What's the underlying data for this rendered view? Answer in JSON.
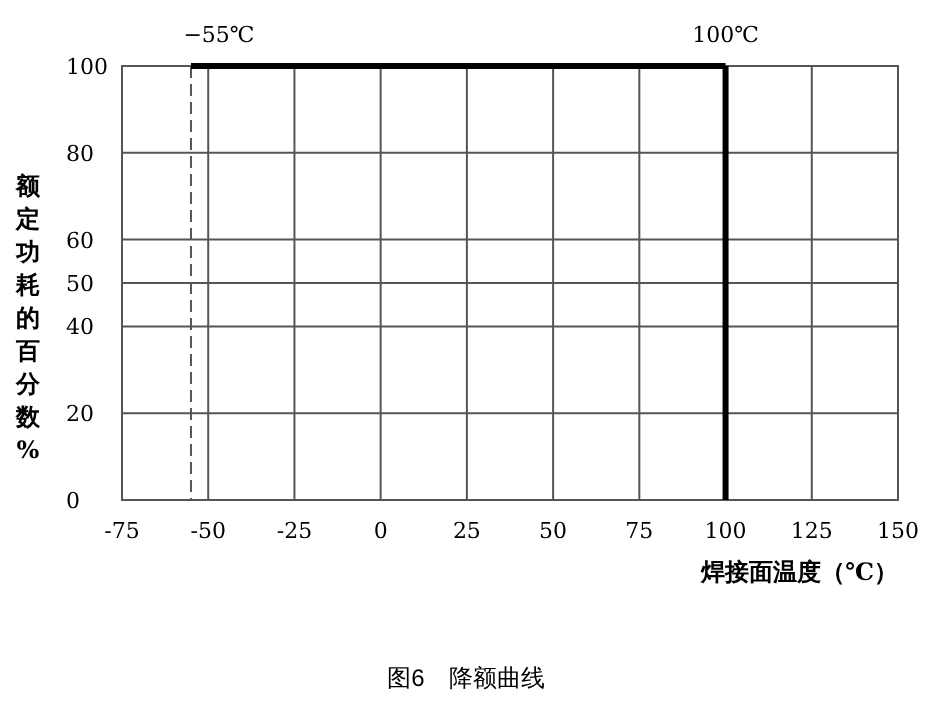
{
  "chart_data": {
    "type": "line",
    "xlabel": "焊接面温度（℃）",
    "ylabel": "额定功耗的百分数%",
    "series": [
      {
        "color": "#000000",
        "x": [
          -55,
          100
        ],
        "values": [
          100,
          100
        ]
      }
    ],
    "xlim": [
      -75,
      150
    ],
    "xticks": [
      -75,
      -50,
      -25,
      0,
      25,
      50,
      75,
      100,
      125,
      150
    ],
    "ylim": [
      0,
      100
    ],
    "yticks": [
      0,
      20,
      40,
      50,
      60,
      80,
      100
    ],
    "grid": true,
    "line_style": "solid",
    "marker": "none",
    "ref_lines": [
      {
        "axis": "x",
        "value": -55,
        "label": "−55℃",
        "color": "#555555",
        "line_style": "dashed"
      },
      {
        "axis": "x",
        "value": 100,
        "label": "100℃",
        "color": "#000000",
        "line_style": "solid"
      }
    ],
    "annotations": [
      "图6　降额曲线"
    ]
  }
}
